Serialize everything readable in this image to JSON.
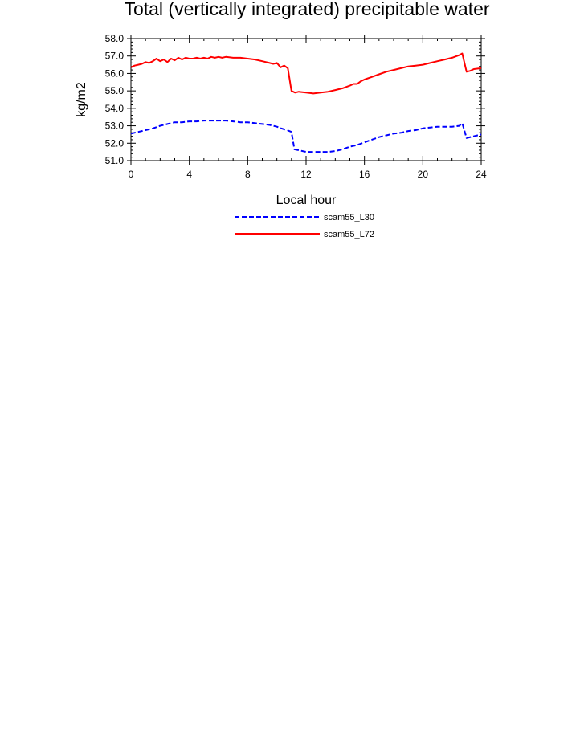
{
  "chart_data": {
    "type": "line",
    "title": "Total (vertically integrated) precipitable water",
    "xlabel": "Local hour",
    "ylabel": "kg/m2",
    "xlim": [
      0,
      24
    ],
    "ylim": [
      51.0,
      58.0
    ],
    "xticks": [
      0,
      4,
      8,
      12,
      16,
      20,
      24
    ],
    "xtick_labels": [
      "0",
      "4",
      "8",
      "12",
      "16",
      "20",
      "24"
    ],
    "yticks": [
      51.0,
      52.0,
      53.0,
      54.0,
      55.0,
      56.0,
      57.0,
      58.0
    ],
    "ytick_labels": [
      "51.0",
      "52.0",
      "53.0",
      "54.0",
      "55.0",
      "56.0",
      "57.0",
      "58.0"
    ],
    "grid": false,
    "legend_position": "bottom",
    "series": [
      {
        "name": "scam55_L30",
        "color": "#0000ff",
        "style": "dashed",
        "x": [
          0,
          0.5,
          1,
          1.5,
          2,
          2.5,
          3,
          3.5,
          4,
          4.5,
          5,
          5.5,
          6,
          6.5,
          7,
          7.5,
          8,
          8.5,
          9,
          9.5,
          10,
          10.3,
          10.7,
          11,
          11.2,
          11.5,
          12,
          12.5,
          13,
          13.5,
          14,
          14.5,
          15,
          15.5,
          16,
          16.5,
          17,
          17.5,
          18,
          18.5,
          19,
          19.5,
          20,
          20.5,
          21,
          21.5,
          22,
          22.5,
          22.7,
          23,
          23.5,
          24
        ],
        "y": [
          52.55,
          52.65,
          52.75,
          52.85,
          53.0,
          53.1,
          53.2,
          53.2,
          53.25,
          53.25,
          53.3,
          53.3,
          53.3,
          53.3,
          53.25,
          53.2,
          53.2,
          53.15,
          53.1,
          53.05,
          52.95,
          52.85,
          52.75,
          52.65,
          51.65,
          51.6,
          51.5,
          51.5,
          51.5,
          51.5,
          51.55,
          51.65,
          51.8,
          51.9,
          52.05,
          52.2,
          52.35,
          52.45,
          52.55,
          52.6,
          52.7,
          52.75,
          52.85,
          52.9,
          52.95,
          52.95,
          52.95,
          53.0,
          53.15,
          52.3,
          52.4,
          52.5
        ]
      },
      {
        "name": "scam55_L72",
        "color": "#ff0000",
        "style": "solid",
        "x": [
          0,
          0.25,
          0.5,
          0.75,
          1,
          1.25,
          1.5,
          1.75,
          2,
          2.25,
          2.5,
          2.75,
          3,
          3.25,
          3.5,
          3.75,
          4,
          4.25,
          4.5,
          4.75,
          5,
          5.25,
          5.5,
          5.75,
          6,
          6.25,
          6.5,
          7,
          7.5,
          8,
          8.5,
          9,
          9.5,
          9.75,
          10,
          10.25,
          10.5,
          10.75,
          11,
          11.25,
          11.5,
          12,
          12.5,
          13,
          13.5,
          14,
          14.5,
          15,
          15.25,
          15.5,
          15.75,
          16,
          16.5,
          17,
          17.5,
          18,
          18.5,
          19,
          19.5,
          20,
          20.5,
          21,
          21.5,
          22,
          22.5,
          22.7,
          23,
          23.25,
          23.5,
          24
        ],
        "y": [
          56.35,
          56.45,
          56.5,
          56.55,
          56.65,
          56.6,
          56.7,
          56.85,
          56.7,
          56.8,
          56.65,
          56.85,
          56.75,
          56.9,
          56.8,
          56.9,
          56.85,
          56.85,
          56.9,
          56.85,
          56.9,
          56.85,
          56.95,
          56.9,
          56.95,
          56.9,
          56.95,
          56.9,
          56.9,
          56.85,
          56.8,
          56.7,
          56.6,
          56.55,
          56.6,
          56.35,
          56.45,
          56.3,
          55.0,
          54.9,
          54.95,
          54.9,
          54.85,
          54.9,
          54.95,
          55.05,
          55.15,
          55.3,
          55.4,
          55.4,
          55.55,
          55.65,
          55.8,
          55.95,
          56.1,
          56.2,
          56.3,
          56.4,
          56.45,
          56.5,
          56.6,
          56.7,
          56.8,
          56.9,
          57.05,
          57.15,
          56.1,
          56.15,
          56.25,
          56.3
        ]
      }
    ]
  }
}
